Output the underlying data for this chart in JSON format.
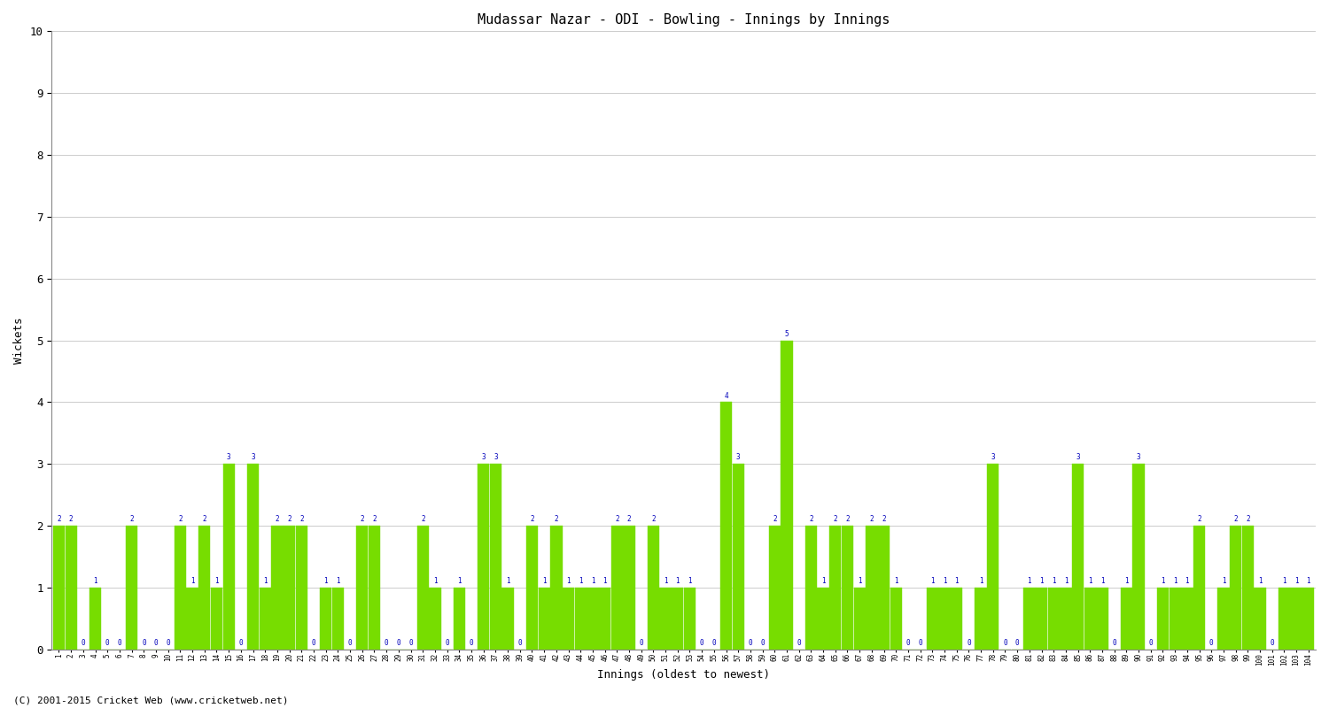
{
  "title": "Mudassar Nazar - ODI - Bowling - Innings by Innings",
  "xlabel": "Innings (oldest to newest)",
  "ylabel": "Wickets",
  "bar_color": "#77dd00",
  "bar_edge_color": "#77dd00",
  "label_color": "#0000bb",
  "background_color": "#ffffff",
  "grid_color": "#cccccc",
  "ylim": [
    0,
    10
  ],
  "yticks": [
    0,
    1,
    2,
    3,
    4,
    5,
    6,
    7,
    8,
    9,
    10
  ],
  "footer": "(C) 2001-2015 Cricket Web (www.cricketweb.net)",
  "innings_labels": [
    "1",
    "2",
    "3",
    "4",
    "5",
    "6",
    "7",
    "8",
    "9",
    "10",
    "11",
    "12",
    "13",
    "14",
    "15",
    "16",
    "17",
    "18",
    "19",
    "20",
    "21",
    "22",
    "23",
    "24",
    "25",
    "26",
    "27",
    "28",
    "29",
    "30",
    "31",
    "32",
    "33",
    "34",
    "35",
    "36",
    "37",
    "38",
    "39",
    "40",
    "41",
    "42",
    "43",
    "44",
    "45",
    "46",
    "47",
    "48",
    "49",
    "50",
    "51",
    "52",
    "53",
    "54",
    "55",
    "56",
    "57",
    "58",
    "59",
    "60",
    "61",
    "62",
    "63",
    "64",
    "65",
    "66",
    "67",
    "68",
    "69",
    "70",
    "71",
    "72",
    "73",
    "74",
    "75",
    "76",
    "77",
    "78",
    "79",
    "80",
    "81",
    "82",
    "83",
    "84",
    "85",
    "86",
    "87",
    "88",
    "89",
    "90",
    "91",
    "92",
    "93",
    "94",
    "95",
    "96",
    "97",
    "98",
    "99",
    "100",
    "101",
    "102",
    "103",
    "104"
  ],
  "wickets": [
    2,
    2,
    0,
    1,
    0,
    0,
    2,
    0,
    0,
    0,
    2,
    1,
    2,
    1,
    3,
    0,
    3,
    1,
    2,
    2,
    2,
    0,
    1,
    1,
    0,
    2,
    2,
    0,
    0,
    0,
    2,
    1,
    0,
    1,
    0,
    3,
    3,
    1,
    0,
    2,
    1,
    2,
    1,
    1,
    1,
    1,
    2,
    2,
    0,
    2,
    1,
    1,
    1,
    0,
    0,
    4,
    3,
    0,
    0,
    2,
    5,
    0,
    2,
    1,
    2,
    2,
    1,
    2,
    2,
    1,
    0,
    0,
    1,
    1,
    1,
    0,
    1,
    3,
    0,
    0,
    1,
    1,
    1,
    1,
    3,
    1,
    1,
    0,
    1,
    3,
    0,
    1,
    1,
    1,
    2,
    0,
    1,
    2,
    2,
    1,
    0,
    1,
    1,
    1
  ]
}
